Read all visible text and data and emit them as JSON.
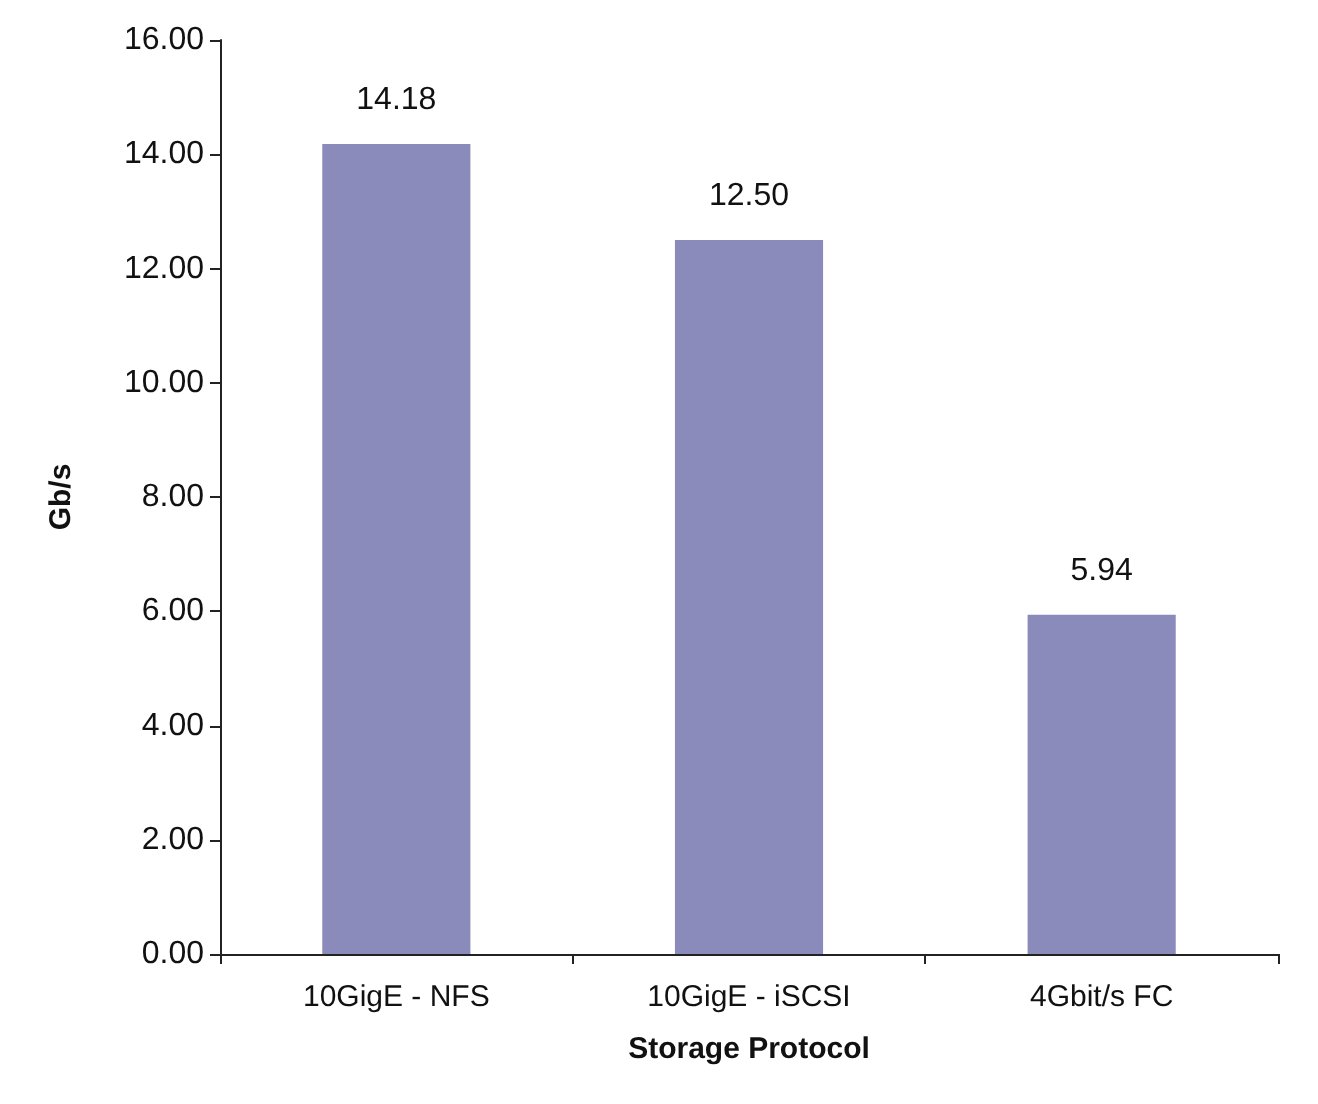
{
  "chart_data": {
    "type": "bar",
    "xlabel": "Storage Protocol",
    "ylabel": "Gb/s",
    "categories": [
      "10GigE - NFS",
      "10GigE - iSCSI",
      "4Gbit/s FC"
    ],
    "values": [
      14.18,
      12.5,
      5.94
    ],
    "value_labels": [
      "14.18",
      "12.50",
      "5.94"
    ],
    "color": "#8a8abb",
    "ylim": [
      0,
      16
    ],
    "yticks": [
      {
        "value": 0,
        "label": "0.00"
      },
      {
        "value": 2,
        "label": "2.00"
      },
      {
        "value": 4,
        "label": "4.00"
      },
      {
        "value": 6,
        "label": "6.00"
      },
      {
        "value": 8,
        "label": "8.00"
      },
      {
        "value": 10,
        "label": "10.00"
      },
      {
        "value": 12,
        "label": "12.00"
      },
      {
        "value": 14,
        "label": "14.00"
      },
      {
        "value": 16,
        "label": "16.00"
      }
    ],
    "grid": false
  }
}
